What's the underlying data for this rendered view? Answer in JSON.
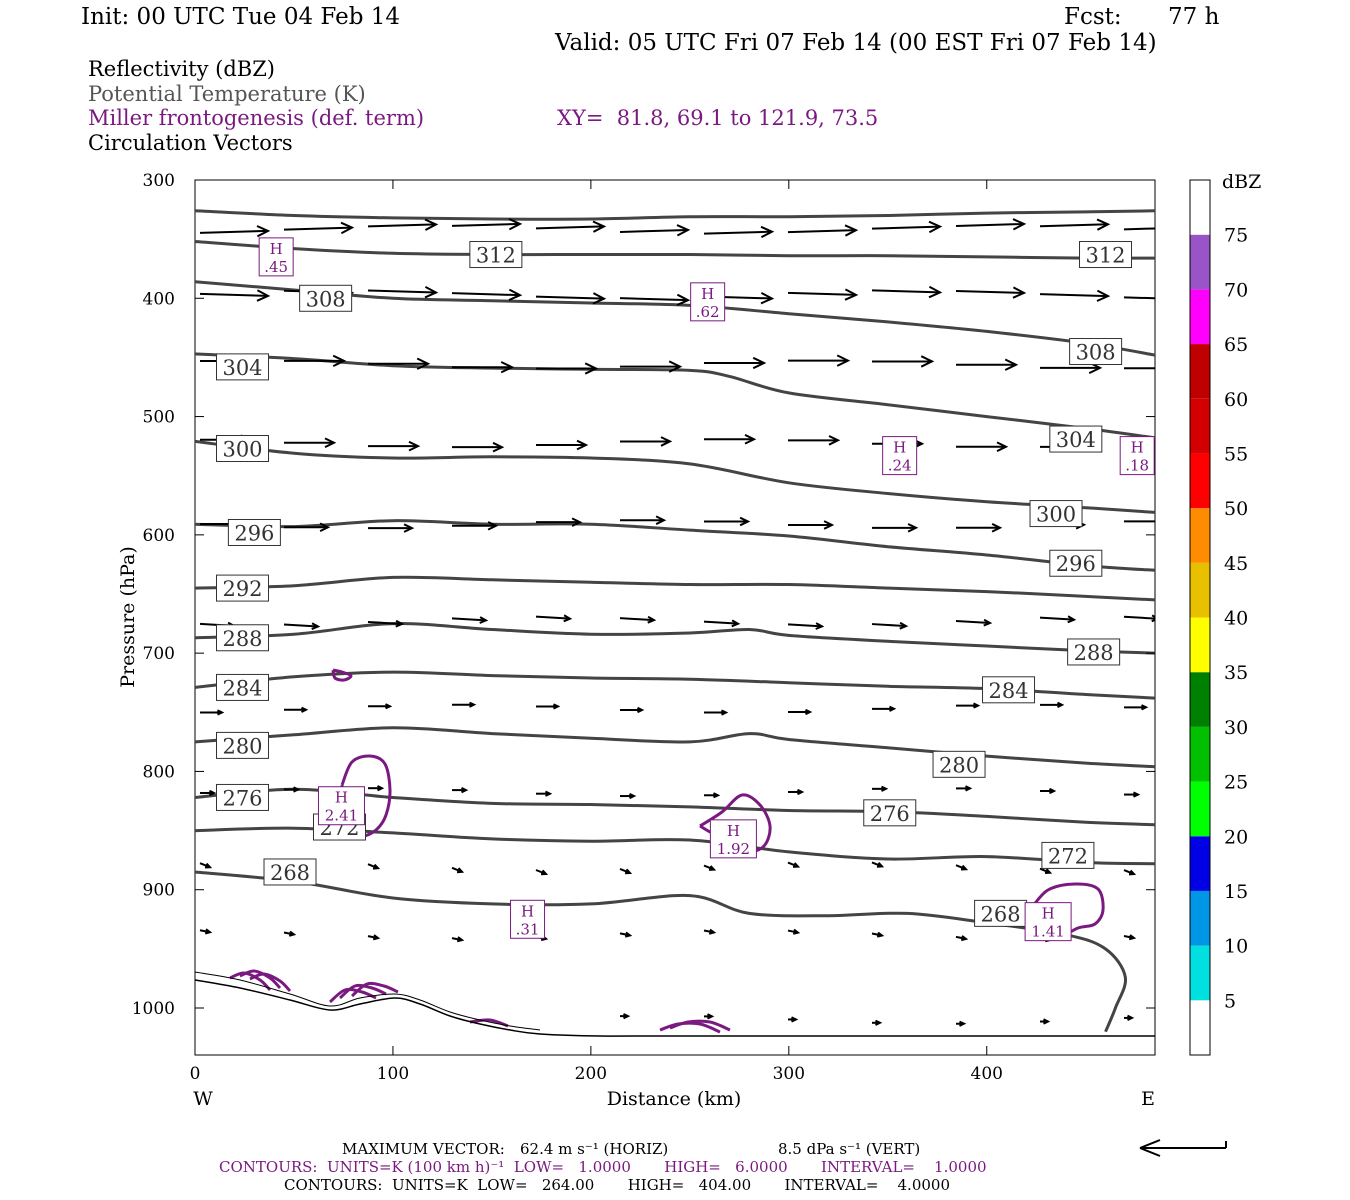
{
  "header": {
    "init": "Init: 00 UTC Tue 04 Feb 14",
    "fcst_label": "Fcst:",
    "fcst_value": "77 h",
    "valid": "Valid: 05 UTC Fri 07 Feb 14 (00 EST Fri 07 Feb 14)",
    "field_reflectivity": "Reflectivity (dBZ)",
    "field_theta": "Potential Temperature (K)",
    "field_miller": "Miller frontogenesis (def. term)",
    "xy": "XY=  81.8, 69.1 to 121.9, 73.5",
    "field_vectors": "Circulation Vectors"
  },
  "colors": {
    "theta_contour": "#444444",
    "frontogenesis_contour": "#7a1a80",
    "vectors": "#000000",
    "terrain": "#000000"
  },
  "footer": {
    "max_vector_label": "MAXIMUM VECTOR:",
    "max_vector_horiz": "62.4 m s⁻¹ (HORIZ)",
    "max_vector_vert": "8.5 dPa s⁻¹ (VERT)",
    "contours_purple": "CONTOURS:  UNITS=K (100 km h)⁻¹  LOW=   1.0000       HIGH=   6.0000       INTERVAL=    1.0000",
    "contours_black": "CONTOURS:  UNITS=K  LOW=   264.00       HIGH=   404.00       INTERVAL=    4.0000"
  },
  "chart_data": {
    "type": "cross-section",
    "xlabel": "Distance (km)",
    "ylabel": "Pressure (hPa)",
    "xlim": [
      0,
      485
    ],
    "ylim": [
      1040,
      300
    ],
    "x_ticks": [
      0,
      100,
      200,
      300,
      400
    ],
    "x_tick_labels": [
      "0",
      "100",
      "200",
      "300",
      "400"
    ],
    "y_ticks": [
      300,
      400,
      500,
      600,
      700,
      800,
      900,
      1000
    ],
    "y_tick_labels": [
      "300",
      "400",
      "500",
      "600",
      "700",
      "800",
      "900",
      "1000"
    ],
    "direction_left": "W",
    "direction_right": "E",
    "colorbar": {
      "unit": "dBZ",
      "labels": [
        "5",
        "10",
        "15",
        "20",
        "25",
        "30",
        "35",
        "40",
        "45",
        "50",
        "55",
        "60",
        "65",
        "70",
        "75"
      ],
      "colors": [
        "#ffffff",
        "#00e0e0",
        "#0096e6",
        "#0000e6",
        "#00ff00",
        "#00c000",
        "#008000",
        "#ffff00",
        "#e8c000",
        "#ff8c00",
        "#ff0000",
        "#d40000",
        "#c00000",
        "#ff00ff",
        "#9955c8",
        "#ffffff"
      ]
    },
    "isentropes": [
      {
        "value": 312,
        "points": [
          [
            0,
            326
          ],
          [
            50,
            330
          ],
          [
            100,
            332
          ],
          [
            150,
            333
          ],
          [
            200,
            333
          ],
          [
            250,
            331
          ],
          [
            300,
            331
          ],
          [
            350,
            330
          ],
          [
            400,
            328
          ],
          [
            450,
            327
          ],
          [
            485,
            326
          ]
        ]
      },
      {
        "value": 312,
        "points": [
          [
            0,
            352
          ],
          [
            50,
            358
          ],
          [
            100,
            362
          ],
          [
            150,
            363
          ],
          [
            200,
            363
          ],
          [
            250,
            363
          ],
          [
            300,
            364
          ],
          [
            350,
            364
          ],
          [
            400,
            365
          ],
          [
            450,
            366
          ],
          [
            485,
            366
          ]
        ]
      },
      {
        "value": 308,
        "points": [
          [
            0,
            386
          ],
          [
            50,
            393
          ],
          [
            100,
            400
          ],
          [
            150,
            402
          ],
          [
            200,
            404
          ],
          [
            250,
            406
          ],
          [
            300,
            413
          ],
          [
            350,
            420
          ],
          [
            400,
            428
          ],
          [
            450,
            438
          ],
          [
            485,
            448
          ]
        ]
      },
      {
        "value": 304,
        "points": [
          [
            0,
            447
          ],
          [
            50,
            451
          ],
          [
            100,
            457
          ],
          [
            150,
            459
          ],
          [
            200,
            460
          ],
          [
            250,
            461
          ],
          [
            270,
            466
          ],
          [
            300,
            480
          ],
          [
            350,
            490
          ],
          [
            400,
            500
          ],
          [
            450,
            510
          ],
          [
            485,
            518
          ]
        ]
      },
      {
        "value": 300,
        "points": [
          [
            0,
            521
          ],
          [
            50,
            531
          ],
          [
            100,
            535
          ],
          [
            150,
            534
          ],
          [
            200,
            535
          ],
          [
            250,
            540
          ],
          [
            300,
            556
          ],
          [
            350,
            565
          ],
          [
            400,
            572
          ],
          [
            450,
            577
          ],
          [
            485,
            581
          ]
        ]
      },
      {
        "value": 296,
        "points": [
          [
            0,
            591
          ],
          [
            50,
            593
          ],
          [
            100,
            588
          ],
          [
            150,
            591
          ],
          [
            200,
            591
          ],
          [
            250,
            596
          ],
          [
            300,
            601
          ],
          [
            350,
            610
          ],
          [
            400,
            617
          ],
          [
            450,
            626
          ],
          [
            485,
            630
          ]
        ]
      },
      {
        "value": 292,
        "points": [
          [
            0,
            645
          ],
          [
            50,
            643
          ],
          [
            100,
            636
          ],
          [
            150,
            638
          ],
          [
            200,
            640
          ],
          [
            250,
            642
          ],
          [
            300,
            642
          ],
          [
            350,
            645
          ],
          [
            400,
            648
          ],
          [
            450,
            652
          ],
          [
            485,
            655
          ]
        ]
      },
      {
        "value": 288,
        "points": [
          [
            0,
            687
          ],
          [
            50,
            684
          ],
          [
            100,
            675
          ],
          [
            150,
            680
          ],
          [
            200,
            684
          ],
          [
            250,
            683
          ],
          [
            280,
            680
          ],
          [
            300,
            685
          ],
          [
            350,
            690
          ],
          [
            400,
            694
          ],
          [
            450,
            698
          ],
          [
            485,
            700
          ]
        ]
      },
      {
        "value": 284,
        "points": [
          [
            0,
            729
          ],
          [
            50,
            720
          ],
          [
            100,
            716
          ],
          [
            150,
            719
          ],
          [
            200,
            721
          ],
          [
            250,
            722
          ],
          [
            300,
            725
          ],
          [
            350,
            728
          ],
          [
            400,
            730
          ],
          [
            450,
            735
          ],
          [
            485,
            738
          ]
        ]
      },
      {
        "value": 280,
        "points": [
          [
            0,
            775
          ],
          [
            50,
            769
          ],
          [
            100,
            763
          ],
          [
            150,
            768
          ],
          [
            200,
            772
          ],
          [
            250,
            775
          ],
          [
            280,
            768
          ],
          [
            300,
            773
          ],
          [
            350,
            780
          ],
          [
            400,
            787
          ],
          [
            450,
            793
          ],
          [
            485,
            796
          ]
        ]
      },
      {
        "value": 276,
        "points": [
          [
            0,
            822
          ],
          [
            50,
            815
          ],
          [
            100,
            822
          ],
          [
            150,
            827
          ],
          [
            200,
            828
          ],
          [
            250,
            830
          ],
          [
            300,
            833
          ],
          [
            350,
            834
          ],
          [
            400,
            838
          ],
          [
            450,
            843
          ],
          [
            485,
            845
          ]
        ]
      },
      {
        "value": 272,
        "points": [
          [
            0,
            850
          ],
          [
            50,
            848
          ],
          [
            100,
            852
          ],
          [
            150,
            857
          ],
          [
            200,
            859
          ],
          [
            250,
            858
          ],
          [
            300,
            868
          ],
          [
            350,
            874
          ],
          [
            400,
            872
          ],
          [
            450,
            877
          ],
          [
            485,
            878
          ]
        ]
      },
      {
        "value": 268,
        "points": [
          [
            0,
            885
          ],
          [
            50,
            893
          ],
          [
            100,
            907
          ],
          [
            150,
            912
          ],
          [
            200,
            912
          ],
          [
            250,
            905
          ],
          [
            280,
            920
          ],
          [
            320,
            922
          ],
          [
            360,
            920
          ],
          [
            400,
            928
          ],
          [
            440,
            938
          ],
          [
            460,
            950
          ],
          [
            470,
            974
          ],
          [
            465,
            1000
          ],
          [
            460,
            1020
          ]
        ]
      }
    ],
    "isentrope_labels": [
      {
        "text": "312",
        "x": 152,
        "p": 363
      },
      {
        "text": "312",
        "x": 460,
        "p": 363
      },
      {
        "text": "308",
        "x": 66,
        "p": 400
      },
      {
        "text": "308",
        "x": 455,
        "p": 445
      },
      {
        "text": "304",
        "x": 24,
        "p": 458
      },
      {
        "text": "304",
        "x": 445,
        "p": 519
      },
      {
        "text": "300",
        "x": 24,
        "p": 527
      },
      {
        "text": "300",
        "x": 435,
        "p": 582
      },
      {
        "text": "296",
        "x": 30,
        "p": 598
      },
      {
        "text": "296",
        "x": 445,
        "p": 624
      },
      {
        "text": "292",
        "x": 24,
        "p": 645
      },
      {
        "text": "288",
        "x": 24,
        "p": 687
      },
      {
        "text": "288",
        "x": 454,
        "p": 699
      },
      {
        "text": "284",
        "x": 24,
        "p": 729
      },
      {
        "text": "284",
        "x": 411,
        "p": 731
      },
      {
        "text": "280",
        "x": 24,
        "p": 778
      },
      {
        "text": "280",
        "x": 386,
        "p": 794
      },
      {
        "text": "276",
        "x": 24,
        "p": 822
      },
      {
        "text": "276",
        "x": 351,
        "p": 835
      },
      {
        "text": "272",
        "x": 73,
        "p": 847
      },
      {
        "text": "272",
        "x": 441,
        "p": 871
      },
      {
        "text": "268",
        "x": 48,
        "p": 885
      },
      {
        "text": "268",
        "x": 407,
        "p": 920
      }
    ],
    "frontogenesis_maxima": [
      {
        "label_top": "H",
        "label_bottom": ".45",
        "x": 41,
        "p": 365
      },
      {
        "label_top": "H",
        "label_bottom": ".62",
        "x": 259,
        "p": 403
      },
      {
        "label_top": "H",
        "label_bottom": ".24",
        "x": 356,
        "p": 533
      },
      {
        "label_top": "H",
        "label_bottom": ".18",
        "x": 476,
        "p": 533
      },
      {
        "label_top": "H",
        "label_bottom": "2.41",
        "x": 74,
        "p": 829
      },
      {
        "label_top": "H",
        "label_bottom": "1.92",
        "x": 272,
        "p": 857
      },
      {
        "label_top": "H",
        "label_bottom": ".31",
        "x": 168,
        "p": 925
      },
      {
        "label_top": "H",
        "label_bottom": "1.41",
        "x": 431,
        "p": 927
      }
    ]
  }
}
